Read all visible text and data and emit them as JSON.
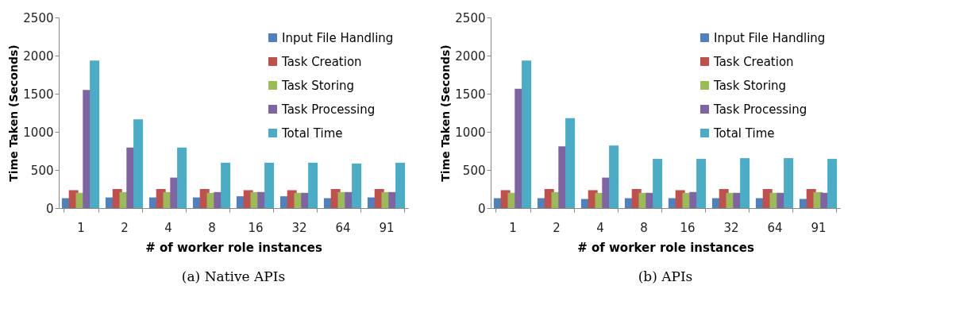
{
  "chart_data": [
    {
      "type": "bar",
      "xlabel": "# of worker role instances",
      "ylabel": "Time Taken (Seconds)",
      "categories": [
        "1",
        "2",
        "4",
        "8",
        "16",
        "32",
        "64",
        "91"
      ],
      "ylim": [
        0,
        2500
      ],
      "yticks": [
        0,
        500,
        1000,
        1500,
        2000,
        2500
      ],
      "grid": false,
      "legend": "top right",
      "annotations": [
        "(a) Native APIs"
      ],
      "series": [
        {
          "name": "Input File Handling",
          "color": "#4f81bd",
          "values": [
            130,
            140,
            140,
            140,
            155,
            155,
            130,
            140
          ]
        },
        {
          "name": "Task Creation",
          "color": "#c0504d",
          "values": [
            235,
            250,
            250,
            250,
            235,
            235,
            250,
            250
          ]
        },
        {
          "name": "Task Storing",
          "color": "#9bbb59",
          "values": [
            200,
            210,
            210,
            200,
            210,
            200,
            210,
            210
          ]
        },
        {
          "name": "Task Processing",
          "color": "#8064a2",
          "values": [
            1550,
            795,
            400,
            210,
            210,
            200,
            210,
            210
          ]
        },
        {
          "name": "Total Time",
          "color": "#4bacc6",
          "values": [
            1935,
            1165,
            795,
            595,
            595,
            595,
            585,
            595
          ]
        }
      ]
    },
    {
      "type": "bar",
      "xlabel": "# of worker role instances",
      "ylabel": "Time Taken (Seconds)",
      "categories": [
        "1",
        "2",
        "4",
        "8",
        "16",
        "32",
        "64",
        "91"
      ],
      "ylim": [
        0,
        2500
      ],
      "yticks": [
        0,
        500,
        1000,
        1500,
        2000,
        2500
      ],
      "grid": false,
      "legend": "top right",
      "annotations": [
        "(b) APIs"
      ],
      "series": [
        {
          "name": "Input File Handling",
          "color": "#4f81bd",
          "values": [
            130,
            130,
            120,
            130,
            130,
            130,
            130,
            120
          ]
        },
        {
          "name": "Task Creation",
          "color": "#c0504d",
          "values": [
            235,
            250,
            235,
            250,
            235,
            250,
            250,
            250
          ]
        },
        {
          "name": "Task Storing",
          "color": "#9bbb59",
          "values": [
            200,
            210,
            200,
            200,
            200,
            200,
            200,
            210
          ]
        },
        {
          "name": "Task Processing",
          "color": "#8064a2",
          "values": [
            1565,
            810,
            400,
            200,
            210,
            200,
            200,
            200
          ]
        },
        {
          "name": "Total Time",
          "color": "#4bacc6",
          "values": [
            1935,
            1180,
            820,
            645,
            645,
            655,
            655,
            645
          ]
        }
      ]
    }
  ]
}
